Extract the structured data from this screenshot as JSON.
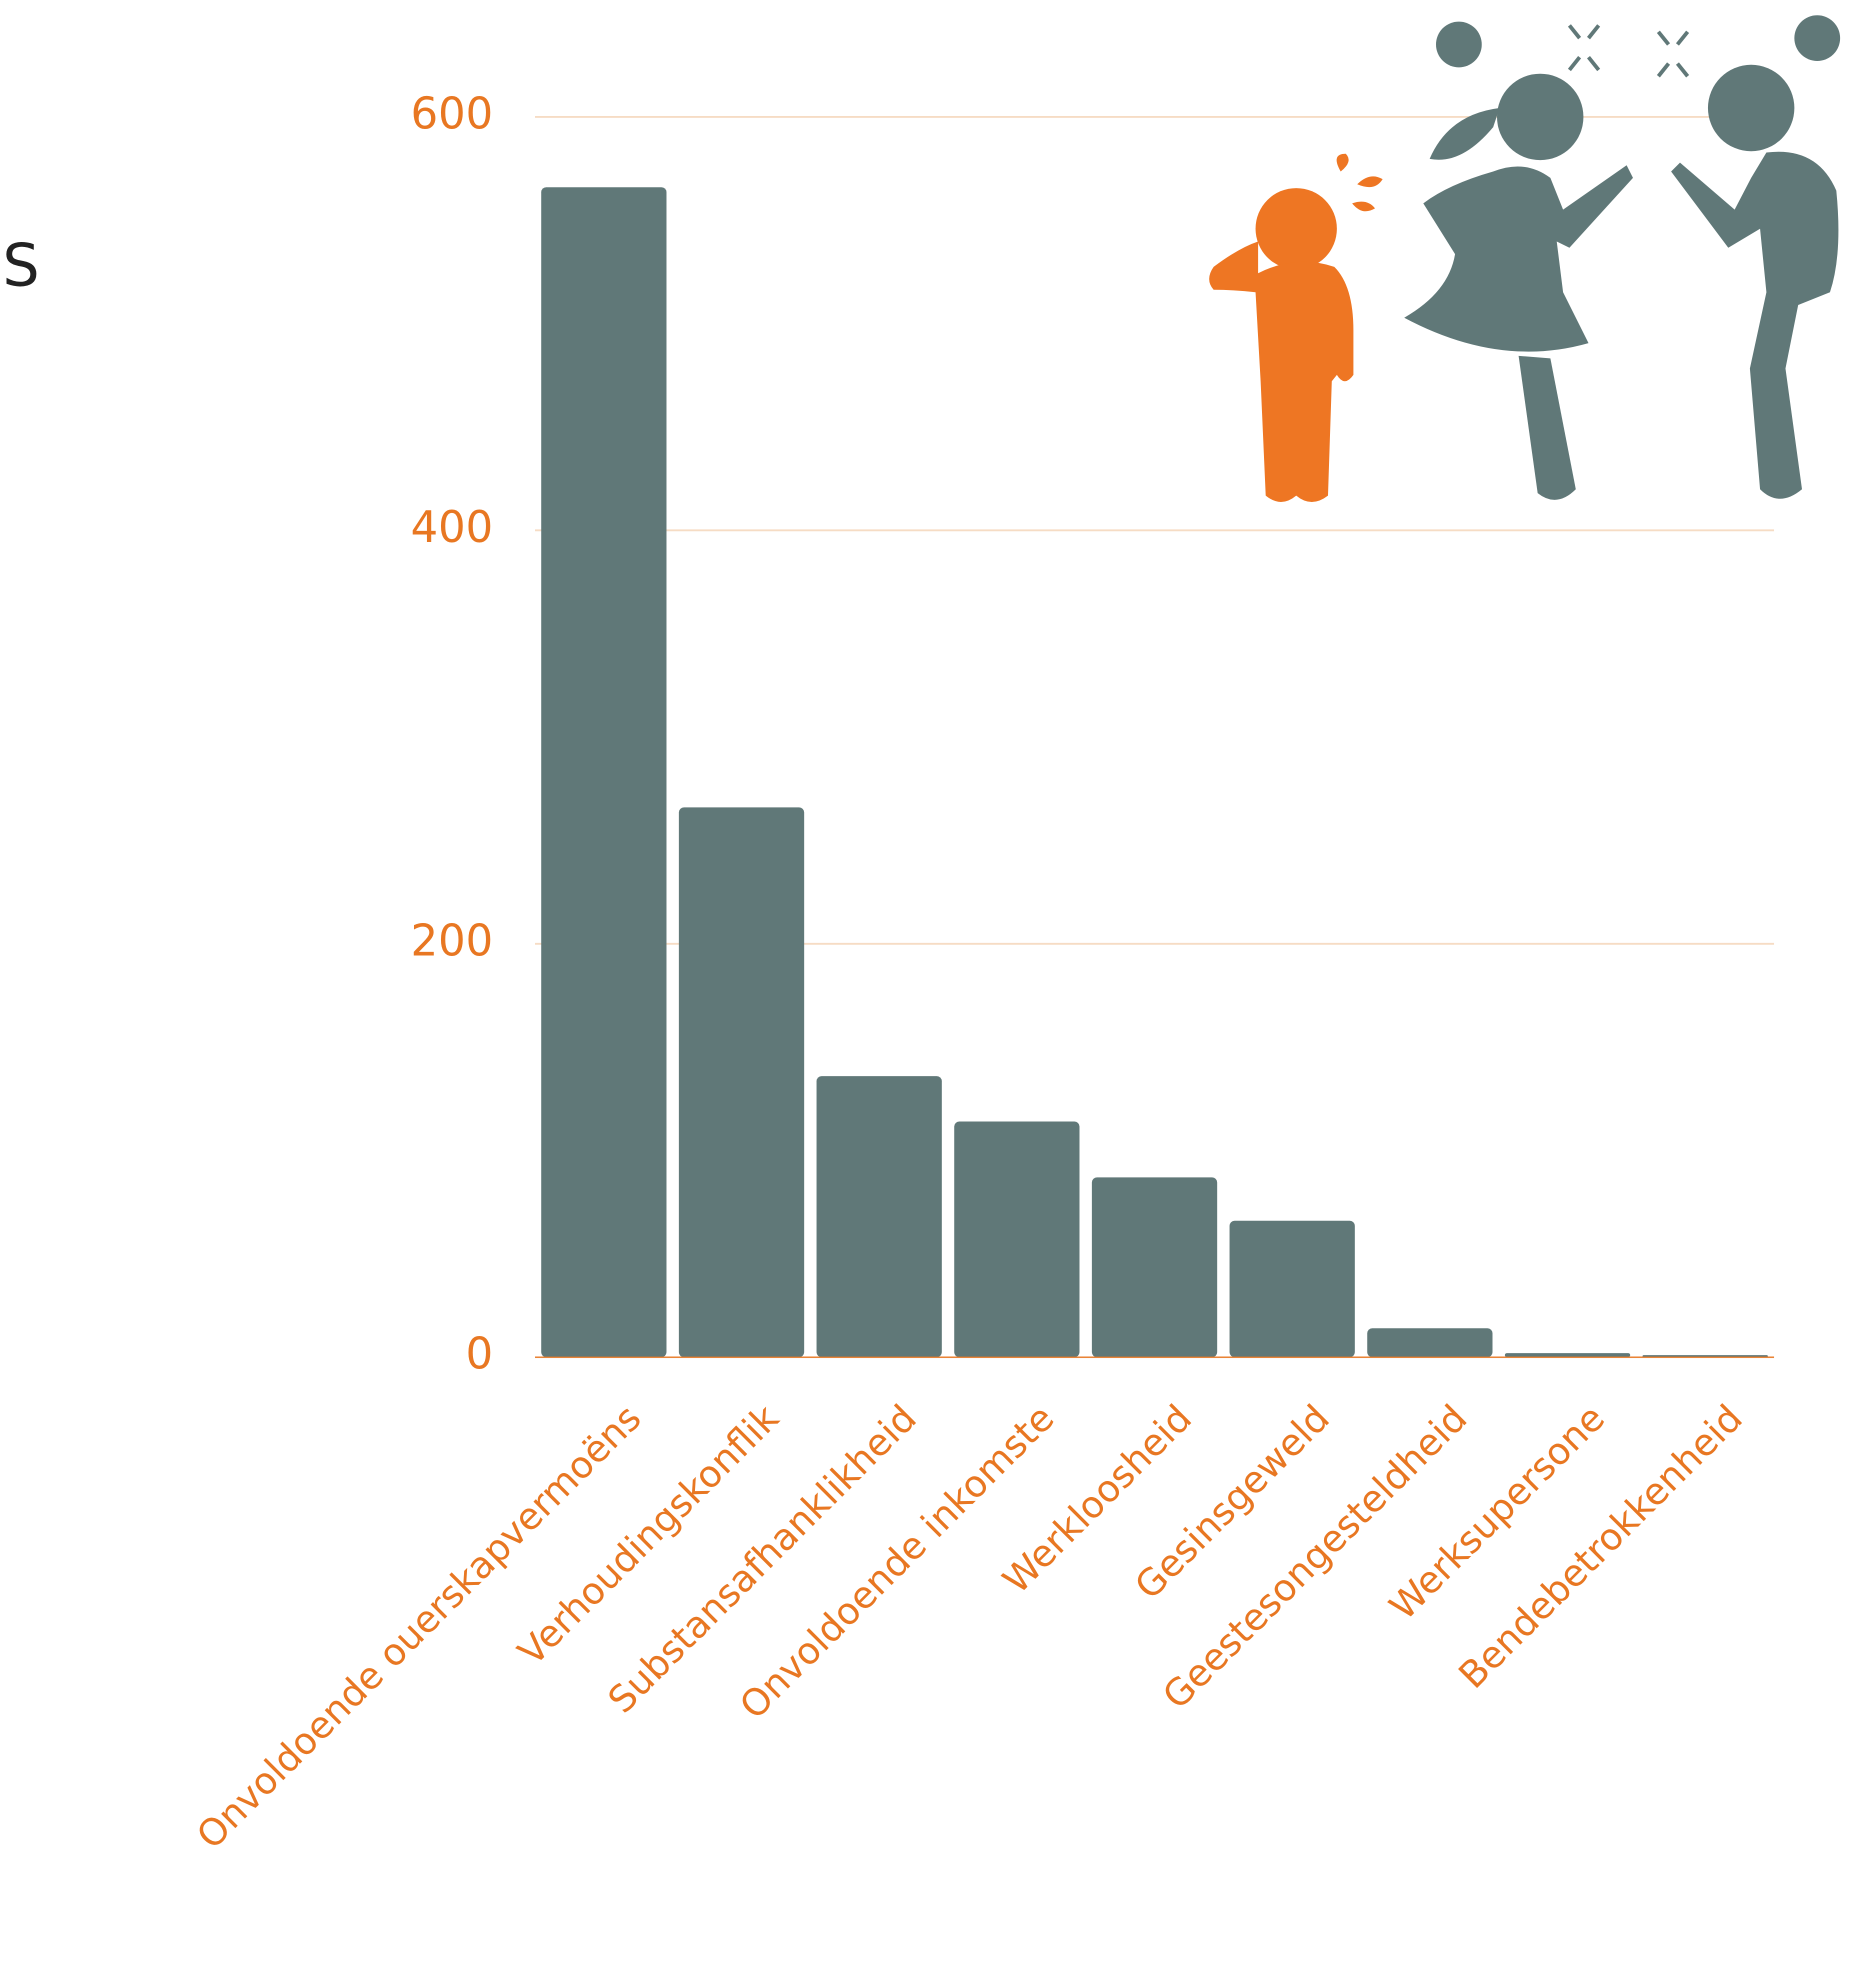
{
  "chart_data": {
    "type": "bar",
    "annotations": [
      "S"
    ],
    "categories": [
      "Onvoldoende ouerskapvermoëns",
      "Verhoudingskonflik",
      "Substansafhanklikheid",
      "Onvoldoende inkomste",
      "Werkloosheid",
      "Gesinsgeweld",
      "Geestesongesteldheid",
      "Werksupersone",
      "Bendebetrokkenheid"
    ],
    "values": [
      566,
      266,
      136,
      114,
      87,
      66,
      14,
      2,
      1
    ],
    "color": "#607878",
    "ylim": [
      0,
      600
    ],
    "yticks": [
      0,
      200,
      400,
      600
    ],
    "grid": true
  }
}
